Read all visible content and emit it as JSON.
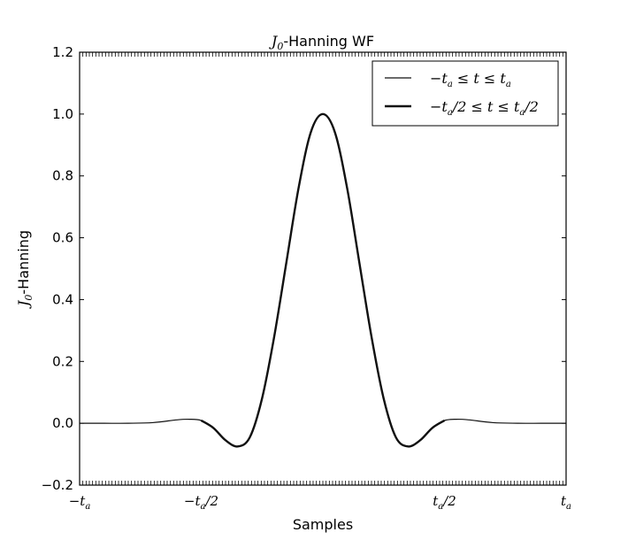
{
  "chart_data": {
    "type": "line",
    "title": "J0-Hanning WF",
    "title_parts": {
      "symbol": "J",
      "sub": "0",
      "rest": "-Hanning WF"
    },
    "xlabel": "Samples",
    "ylabel": "J0-Hanning",
    "ylabel_parts": {
      "symbol": "J",
      "sub": "0",
      "rest": "-Hanning"
    },
    "ylim": [
      -0.2,
      1.2
    ],
    "xlim": [
      -1,
      1
    ],
    "y_ticks": [
      -0.2,
      0.0,
      0.2,
      0.4,
      0.6,
      0.8,
      1.0,
      1.2
    ],
    "y_tick_labels": [
      "−0.2",
      "0.0",
      "0.2",
      "0.4",
      "0.6",
      "0.8",
      "1.0",
      "1.2"
    ],
    "x_ticks": [
      -1,
      -0.5,
      0.5,
      1
    ],
    "x_tick_labels": [
      "−t_a",
      "−t_a/2",
      "t_a/2",
      "t_a"
    ],
    "grid": false,
    "legend_position": "top-right",
    "series": [
      {
        "name": "−t_a ≤ t ≤ t_a",
        "line_width": "thin",
        "x": [
          -1.0,
          -0.9,
          -0.8,
          -0.7,
          -0.6,
          -0.55,
          -0.5,
          -0.45,
          -0.4,
          -0.35,
          -0.3,
          -0.25,
          -0.2,
          -0.15,
          -0.1,
          -0.05,
          0.0,
          0.05,
          0.1,
          0.15,
          0.2,
          0.25,
          0.3,
          0.35,
          0.4,
          0.45,
          0.5,
          0.55,
          0.6,
          0.7,
          0.8,
          0.9,
          1.0
        ],
        "y": [
          0.0,
          0.0,
          0.0,
          0.002,
          0.011,
          0.013,
          0.009,
          -0.015,
          -0.055,
          -0.075,
          -0.045,
          0.08,
          0.28,
          0.52,
          0.76,
          0.94,
          1.0,
          0.94,
          0.76,
          0.52,
          0.28,
          0.08,
          -0.045,
          -0.075,
          -0.055,
          -0.015,
          0.009,
          0.013,
          0.011,
          0.002,
          0.0,
          0.0,
          0.0
        ]
      },
      {
        "name": "−t_a/2 ≤ t ≤ t_a/2",
        "line_width": "thick",
        "x": [
          -0.5,
          -0.45,
          -0.4,
          -0.35,
          -0.3,
          -0.25,
          -0.2,
          -0.15,
          -0.1,
          -0.05,
          0.0,
          0.05,
          0.1,
          0.15,
          0.2,
          0.25,
          0.3,
          0.35,
          0.4,
          0.45,
          0.5
        ],
        "y": [
          0.009,
          -0.015,
          -0.055,
          -0.075,
          -0.045,
          0.08,
          0.28,
          0.52,
          0.76,
          0.94,
          1.0,
          0.94,
          0.76,
          0.52,
          0.28,
          0.08,
          -0.045,
          -0.075,
          -0.055,
          -0.015,
          0.009
        ]
      }
    ]
  }
}
